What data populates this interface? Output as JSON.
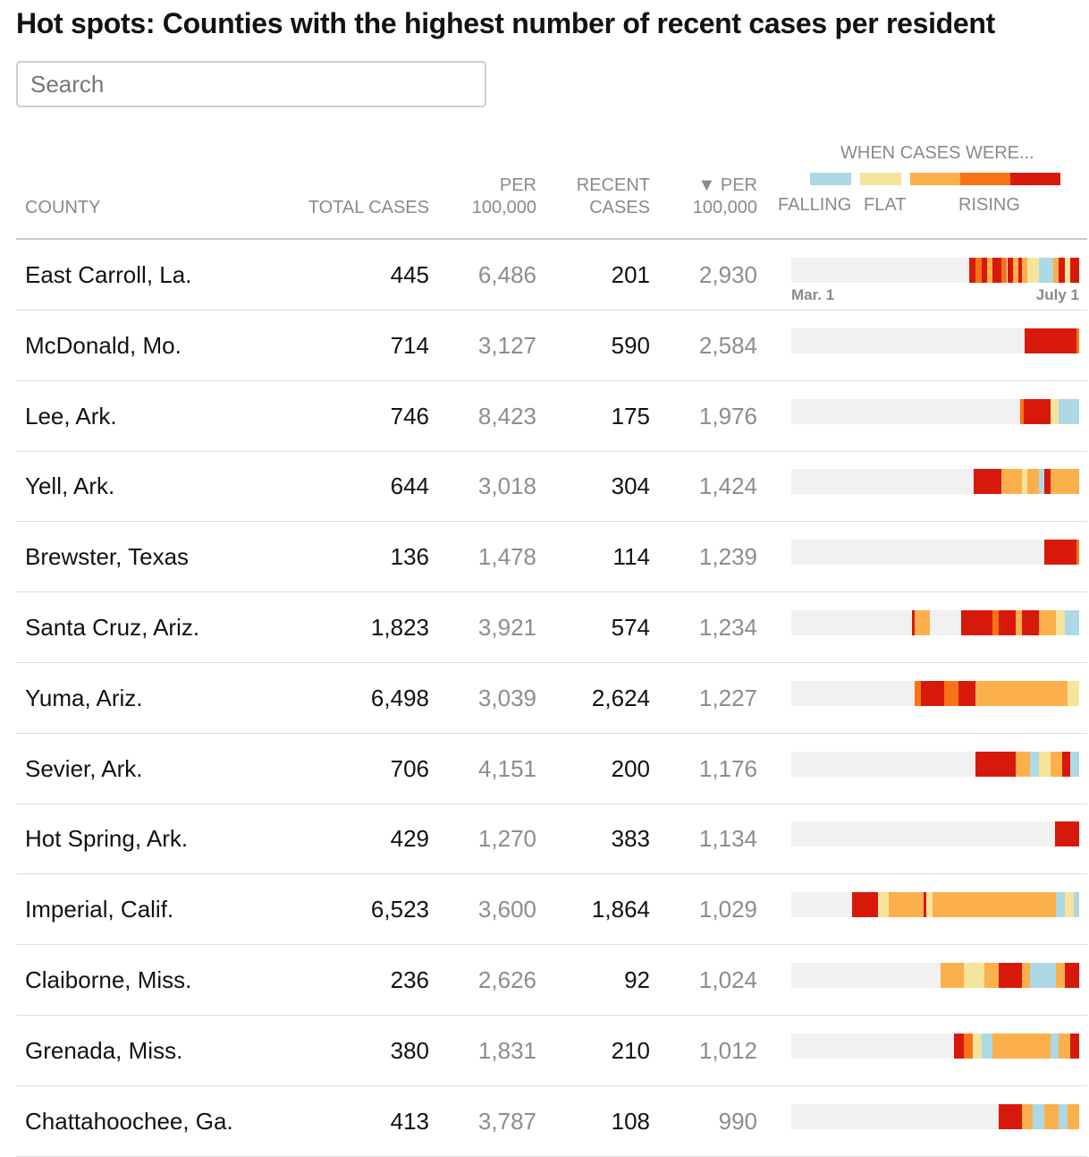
{
  "title": "Hot spots: Counties with the highest number of recent cases per resident",
  "search": {
    "placeholder": "Search"
  },
  "headers": {
    "county": "COUNTY",
    "total_cases": "TOTAL CASES",
    "per_100k_1": "PER",
    "per_100k_2": "100,000",
    "recent_1": "RECENT",
    "recent_2": "CASES",
    "recent_per_1": "▼ PER",
    "recent_per_2": "100,000"
  },
  "legend": {
    "title": "WHEN CASES WERE...",
    "falling": "FALLING",
    "flat": "FLAT",
    "rising": "RISING",
    "colors": {
      "falling": "#add8e6",
      "flat": "#f5e49c",
      "rising1": "#fbb04b",
      "rising2": "#f97316",
      "rising3": "#d7190b"
    }
  },
  "axis": {
    "start": "Mar. 1",
    "end": "July 1"
  },
  "rows": [
    {
      "county": "East Carroll, La.",
      "total": "445",
      "per100k": "6,486",
      "recent": "201",
      "recentPer100k": "2,930",
      "timeline": [
        [
          0.618,
          0.64,
          "r3"
        ],
        [
          0.64,
          0.66,
          "r2"
        ],
        [
          0.66,
          0.68,
          "r3"
        ],
        [
          0.68,
          0.7,
          "r1"
        ],
        [
          0.7,
          0.73,
          "r3"
        ],
        [
          0.73,
          0.75,
          "r2"
        ],
        [
          0.75,
          0.77,
          "r3"
        ],
        [
          0.77,
          0.79,
          "r1"
        ],
        [
          0.79,
          0.8,
          "r3"
        ],
        [
          0.8,
          0.82,
          "r1"
        ],
        [
          0.82,
          0.86,
          "fl"
        ],
        [
          0.86,
          0.91,
          "fa"
        ],
        [
          0.91,
          0.93,
          "r1"
        ],
        [
          0.93,
          0.95,
          "r3"
        ],
        [
          0.95,
          0.97,
          "fl"
        ],
        [
          0.97,
          1.0,
          "r3"
        ]
      ]
    },
    {
      "county": "McDonald, Mo.",
      "total": "714",
      "per100k": "3,127",
      "recent": "590",
      "recentPer100k": "2,584",
      "timeline": [
        [
          0.81,
          0.99,
          "r3"
        ],
        [
          0.99,
          1.0,
          "r2"
        ]
      ]
    },
    {
      "county": "Lee, Ark.",
      "total": "746",
      "per100k": "8,423",
      "recent": "175",
      "recentPer100k": "1,976",
      "timeline": [
        [
          0.795,
          0.806,
          "r2"
        ],
        [
          0.806,
          0.9,
          "r3"
        ],
        [
          0.9,
          0.93,
          "fl"
        ],
        [
          0.93,
          1.0,
          "fa"
        ]
      ]
    },
    {
      "county": "Yell, Ark.",
      "total": "644",
      "per100k": "3,018",
      "recent": "304",
      "recentPer100k": "1,424",
      "timeline": [
        [
          0.632,
          0.73,
          "r3"
        ],
        [
          0.73,
          0.8,
          "r1"
        ],
        [
          0.8,
          0.82,
          "fl"
        ],
        [
          0.82,
          0.86,
          "r1"
        ],
        [
          0.86,
          0.88,
          "fa"
        ],
        [
          0.88,
          0.9,
          "r3"
        ],
        [
          0.9,
          1.0,
          "r1"
        ]
      ]
    },
    {
      "county": "Brewster, Texas",
      "total": "136",
      "per100k": "1,478",
      "recent": "114",
      "recentPer100k": "1,239",
      "timeline": [
        [
          0.88,
          0.99,
          "r3"
        ],
        [
          0.99,
          1.0,
          "r2"
        ]
      ]
    },
    {
      "county": "Santa Cruz, Ariz.",
      "total": "1,823",
      "per100k": "3,921",
      "recent": "574",
      "recentPer100k": "1,234",
      "timeline": [
        [
          0.42,
          0.43,
          "r3"
        ],
        [
          0.43,
          0.48,
          "r1"
        ],
        [
          0.59,
          0.6,
          "r3"
        ],
        [
          0.6,
          0.7,
          "r3"
        ],
        [
          0.7,
          0.72,
          "r2"
        ],
        [
          0.72,
          0.78,
          "r3"
        ],
        [
          0.78,
          0.8,
          "r1"
        ],
        [
          0.8,
          0.86,
          "r3"
        ],
        [
          0.86,
          0.92,
          "r1"
        ],
        [
          0.92,
          0.95,
          "fl"
        ],
        [
          0.95,
          1.0,
          "fa"
        ]
      ]
    },
    {
      "county": "Yuma, Ariz.",
      "total": "6,498",
      "per100k": "3,039",
      "recent": "2,624",
      "recentPer100k": "1,227",
      "timeline": [
        [
          0.43,
          0.45,
          "r2"
        ],
        [
          0.45,
          0.53,
          "r3"
        ],
        [
          0.53,
          0.58,
          "r2"
        ],
        [
          0.58,
          0.64,
          "r3"
        ],
        [
          0.64,
          0.96,
          "r1"
        ],
        [
          0.96,
          1.0,
          "fl"
        ]
      ]
    },
    {
      "county": "Sevier, Ark.",
      "total": "706",
      "per100k": "4,151",
      "recent": "200",
      "recentPer100k": "1,176",
      "timeline": [
        [
          0.64,
          0.78,
          "r3"
        ],
        [
          0.78,
          0.83,
          "r1"
        ],
        [
          0.83,
          0.86,
          "fa"
        ],
        [
          0.86,
          0.9,
          "fl"
        ],
        [
          0.9,
          0.94,
          "r1"
        ],
        [
          0.94,
          0.97,
          "r3"
        ],
        [
          0.97,
          1.0,
          "fa"
        ]
      ]
    },
    {
      "county": "Hot Spring, Ark.",
      "total": "429",
      "per100k": "1,270",
      "recent": "383",
      "recentPer100k": "1,134",
      "timeline": [
        [
          0.915,
          1.0,
          "r3"
        ]
      ]
    },
    {
      "county": "Imperial, Calif.",
      "total": "6,523",
      "per100k": "3,600",
      "recent": "1,864",
      "recentPer100k": "1,029",
      "timeline": [
        [
          0.21,
          0.3,
          "r3"
        ],
        [
          0.3,
          0.34,
          "fl"
        ],
        [
          0.34,
          0.46,
          "r1"
        ],
        [
          0.46,
          0.47,
          "r3"
        ],
        [
          0.47,
          0.49,
          "fl"
        ],
        [
          0.49,
          0.92,
          "r1"
        ],
        [
          0.92,
          0.95,
          "fa"
        ],
        [
          0.95,
          0.98,
          "fl"
        ],
        [
          0.98,
          1.0,
          "fa"
        ]
      ]
    },
    {
      "county": "Claiborne, Miss.",
      "total": "236",
      "per100k": "2,626",
      "recent": "92",
      "recentPer100k": "1,024",
      "timeline": [
        [
          0.52,
          0.6,
          "r1"
        ],
        [
          0.6,
          0.67,
          "fl"
        ],
        [
          0.67,
          0.72,
          "r1"
        ],
        [
          0.72,
          0.8,
          "r3"
        ],
        [
          0.8,
          0.83,
          "r1"
        ],
        [
          0.83,
          0.92,
          "fa"
        ],
        [
          0.92,
          0.95,
          "r1"
        ],
        [
          0.95,
          1.0,
          "r3"
        ]
      ]
    },
    {
      "county": "Grenada, Miss.",
      "total": "380",
      "per100k": "1,831",
      "recent": "210",
      "recentPer100k": "1,012",
      "timeline": [
        [
          0.565,
          0.6,
          "r3"
        ],
        [
          0.6,
          0.63,
          "r2"
        ],
        [
          0.63,
          0.66,
          "fl"
        ],
        [
          0.66,
          0.7,
          "fa"
        ],
        [
          0.7,
          0.9,
          "r1"
        ],
        [
          0.9,
          0.93,
          "fa"
        ],
        [
          0.93,
          0.97,
          "r1"
        ],
        [
          0.97,
          1.0,
          "r3"
        ]
      ]
    },
    {
      "county": "Chattahoochee, Ga.",
      "total": "413",
      "per100k": "3,787",
      "recent": "108",
      "recentPer100k": "990",
      "timeline": [
        [
          0.72,
          0.8,
          "r3"
        ],
        [
          0.8,
          0.84,
          "r1"
        ],
        [
          0.84,
          0.88,
          "fa"
        ],
        [
          0.88,
          0.93,
          "r1"
        ],
        [
          0.93,
          0.96,
          "fa"
        ],
        [
          0.96,
          1.0,
          "r1"
        ]
      ]
    }
  ]
}
